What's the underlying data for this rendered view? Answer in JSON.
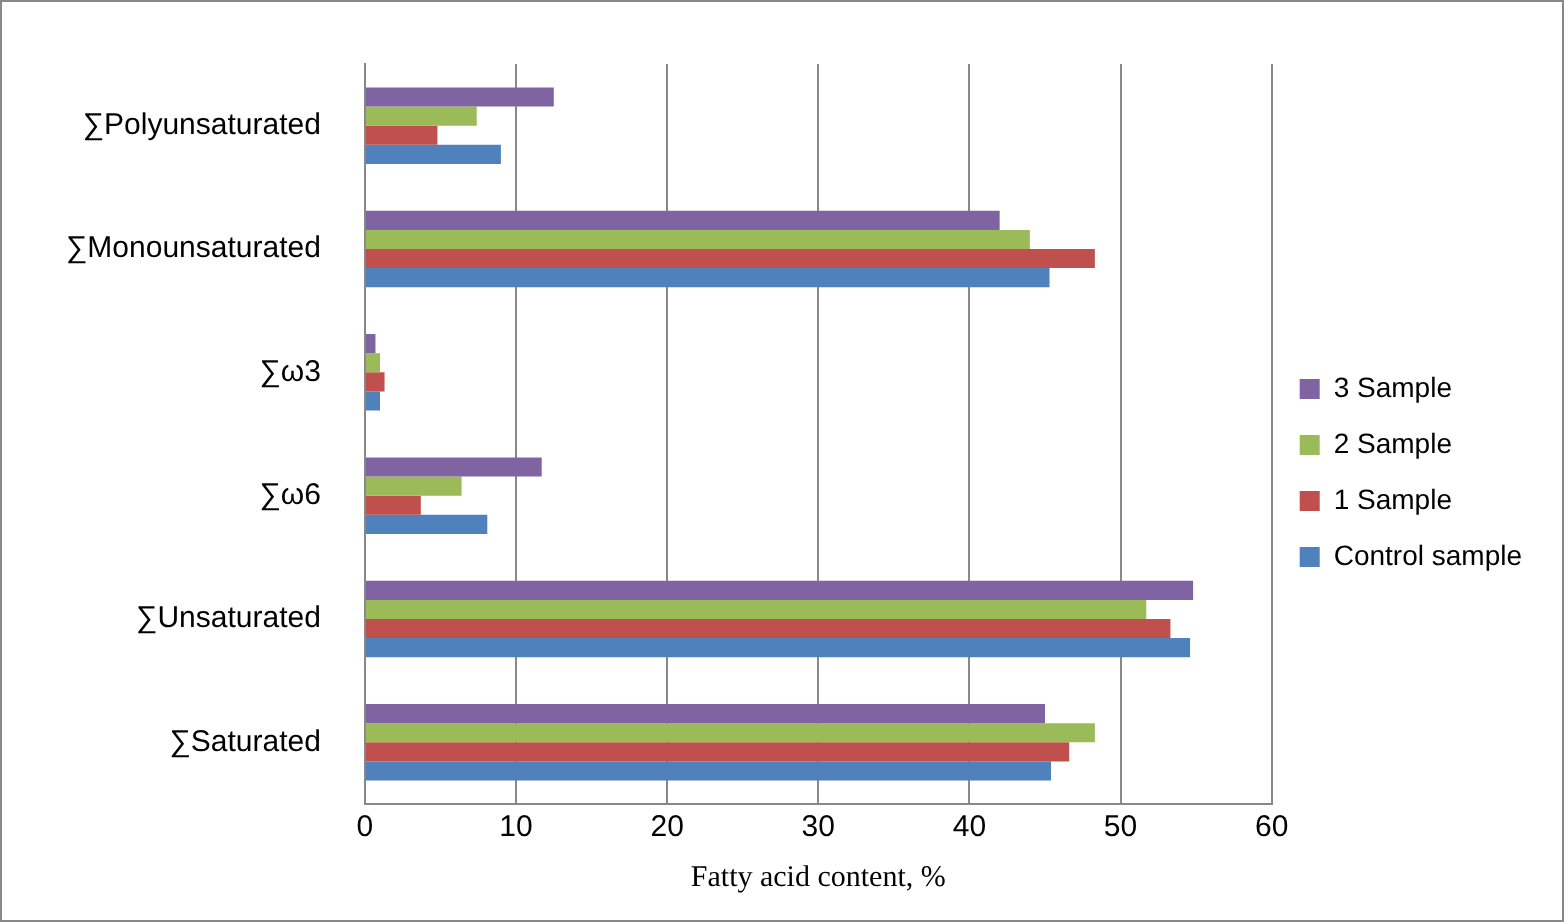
{
  "chart_data": {
    "type": "bar",
    "orientation": "horizontal",
    "xlabel": "Fatty acid content, %",
    "categories": [
      "∑Polyunsaturated",
      "∑Monounsaturated",
      "∑ω3",
      "∑ω6",
      "∑Unsaturated",
      "∑Saturated"
    ],
    "series": [
      {
        "name": "3 Sample",
        "color": "#8064a2",
        "values": [
          12.5,
          42.0,
          0.7,
          11.7,
          54.8,
          45.0
        ]
      },
      {
        "name": "2 Sample",
        "color": "#9bbb59",
        "values": [
          7.4,
          44.0,
          1.0,
          6.4,
          51.7,
          48.3
        ]
      },
      {
        "name": "1 Sample",
        "color": "#c0504d",
        "values": [
          4.8,
          48.3,
          1.3,
          3.7,
          53.3,
          46.6
        ]
      },
      {
        "name": "Control sample",
        "color": "#4f81bd",
        "values": [
          9.0,
          45.3,
          1.0,
          8.1,
          54.6,
          45.4
        ]
      }
    ],
    "xlim": [
      0,
      60
    ],
    "xticks": [
      0,
      10,
      20,
      30,
      40,
      50,
      60
    ],
    "grid": "x",
    "legend": "right"
  }
}
